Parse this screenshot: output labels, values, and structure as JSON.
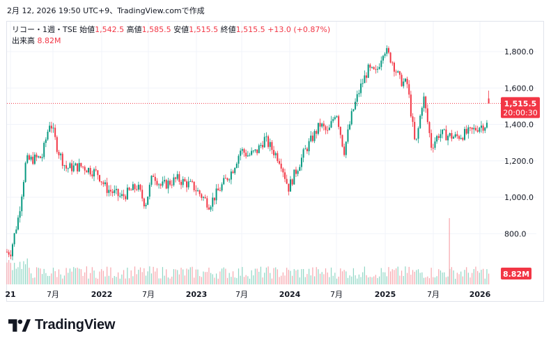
{
  "header": {
    "snapshot_text": "2月 12, 2026 19:50 UTC+9、TradingView.comで作成"
  },
  "legend": {
    "symbol": "リコー・1週・TSE",
    "open_label": "始値",
    "open": "1,542.5",
    "high_label": "高値",
    "high": "1,585.5",
    "low_label": "安値",
    "low": "1,515.5",
    "close_label": "終値",
    "close": "1,515.5",
    "change": "+13.0 (+0.87%)",
    "volume_label": "出来高",
    "volume": "8.82M"
  },
  "price_tag": {
    "price": "1,515.5",
    "countdown": "20:00:30"
  },
  "volume_tag": {
    "value": "8.82M"
  },
  "footer": {
    "logo_text": "TradingView"
  },
  "colors": {
    "up": "#089981",
    "down": "#f23645",
    "axis_text": "#131722",
    "grid": "#f0f3fa"
  },
  "chart_data": {
    "type": "candlestick",
    "interval": "weekly",
    "y_axis": {
      "ticks": [
        800,
        1000,
        1200,
        1400,
        1600,
        1800
      ],
      "tick_labels": [
        "800.0",
        "1,000.0",
        "1,200.0",
        "1,400.0",
        "1,600.0",
        "1,800.0"
      ],
      "range": [
        700,
        1900
      ]
    },
    "x_axis": {
      "tick_labels": [
        "21",
        "7月",
        "2022",
        "7月",
        "2023",
        "7月",
        "2024",
        "7月",
        "2025",
        "7月",
        "2026"
      ]
    },
    "last_price": 1515.5,
    "series": [
      {
        "name": "price",
        "points": [
          {
            "date": "2021-01",
            "value": 700
          },
          {
            "date": "2021-02",
            "value": 900
          },
          {
            "date": "2021-03",
            "value": 1200
          },
          {
            "date": "2021-05",
            "value": 1220
          },
          {
            "date": "2021-06",
            "value": 1420
          },
          {
            "date": "2021-07",
            "value": 1260
          },
          {
            "date": "2021-08",
            "value": 1160
          },
          {
            "date": "2021-10",
            "value": 1170
          },
          {
            "date": "2021-12",
            "value": 1130
          },
          {
            "date": "2022-01",
            "value": 1050
          },
          {
            "date": "2022-03",
            "value": 1000
          },
          {
            "date": "2022-05",
            "value": 1060
          },
          {
            "date": "2022-06",
            "value": 960
          },
          {
            "date": "2022-07",
            "value": 1130
          },
          {
            "date": "2022-08",
            "value": 1060
          },
          {
            "date": "2022-10",
            "value": 1100
          },
          {
            "date": "2022-12",
            "value": 1060
          },
          {
            "date": "2023-02",
            "value": 960
          },
          {
            "date": "2023-03",
            "value": 1020
          },
          {
            "date": "2023-05",
            "value": 1150
          },
          {
            "date": "2023-06",
            "value": 1260
          },
          {
            "date": "2023-07",
            "value": 1230
          },
          {
            "date": "2023-08",
            "value": 1250
          },
          {
            "date": "2023-09",
            "value": 1320
          },
          {
            "date": "2023-11",
            "value": 1200
          },
          {
            "date": "2023-12",
            "value": 1050
          },
          {
            "date": "2024-02",
            "value": 1250
          },
          {
            "date": "2024-04",
            "value": 1400
          },
          {
            "date": "2024-05",
            "value": 1350
          },
          {
            "date": "2024-06",
            "value": 1480
          },
          {
            "date": "2024-07",
            "value": 1250
          },
          {
            "date": "2024-08",
            "value": 1460
          },
          {
            "date": "2024-09",
            "value": 1600
          },
          {
            "date": "2024-10",
            "value": 1700
          },
          {
            "date": "2024-11",
            "value": 1680
          },
          {
            "date": "2024-12",
            "value": 1820
          },
          {
            "date": "2025-01",
            "value": 1750
          },
          {
            "date": "2025-02",
            "value": 1640
          },
          {
            "date": "2025-03",
            "value": 1620
          },
          {
            "date": "2025-04",
            "value": 1270
          },
          {
            "date": "2025-05",
            "value": 1560
          },
          {
            "date": "2025-06",
            "value": 1280
          },
          {
            "date": "2025-07",
            "value": 1350
          },
          {
            "date": "2025-09",
            "value": 1330
          },
          {
            "date": "2025-11",
            "value": 1360
          },
          {
            "date": "2025-12",
            "value": 1390
          },
          {
            "date": "2026-01",
            "value": 1400
          },
          {
            "date": "2026-02",
            "value": 1515.5
          }
        ]
      }
    ],
    "volume_spikes": [
      {
        "date": "2025-07",
        "note": "largest"
      }
    ]
  }
}
